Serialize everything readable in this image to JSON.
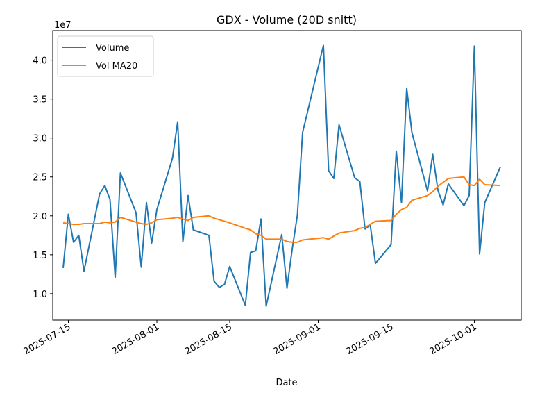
{
  "chart_data": {
    "type": "line",
    "title": "GDX - Volume (20D snitt)",
    "xlabel": "Date",
    "ylabel": "",
    "y_offset_label": "1e7",
    "y_scale_factor": 10000000,
    "xlim": [
      "2025-07-12",
      "2025-10-10"
    ],
    "ylim": [
      0.66,
      4.38
    ],
    "y_ticks": [
      1.0,
      1.5,
      2.0,
      2.5,
      3.0,
      3.5,
      4.0
    ],
    "y_tick_labels": [
      "1.0",
      "1.5",
      "2.0",
      "2.5",
      "3.0",
      "3.5",
      "4.0"
    ],
    "x_ticks": [
      "2025-07-15",
      "2025-08-01",
      "2025-08-15",
      "2025-09-01",
      "2025-09-15",
      "2025-10-01"
    ],
    "x_tick_labels": [
      "2025-07-15",
      "2025-08-01",
      "2025-08-15",
      "2025-09-01",
      "2025-09-15",
      "2025-10-01"
    ],
    "legend_position": "top-left",
    "grid": false,
    "series": [
      {
        "name": "Volume",
        "color": "#1f77b4",
        "x": [
          "2025-07-14",
          "2025-07-15",
          "2025-07-16",
          "2025-07-17",
          "2025-07-18",
          "2025-07-21",
          "2025-07-22",
          "2025-07-23",
          "2025-07-24",
          "2025-07-25",
          "2025-07-28",
          "2025-07-29",
          "2025-07-30",
          "2025-07-31",
          "2025-08-01",
          "2025-08-04",
          "2025-08-05",
          "2025-08-06",
          "2025-08-07",
          "2025-08-08",
          "2025-08-11",
          "2025-08-12",
          "2025-08-13",
          "2025-08-14",
          "2025-08-15",
          "2025-08-18",
          "2025-08-19",
          "2025-08-20",
          "2025-08-21",
          "2025-08-22",
          "2025-08-25",
          "2025-08-26",
          "2025-08-27",
          "2025-08-28",
          "2025-08-29",
          "2025-09-02",
          "2025-09-03",
          "2025-09-04",
          "2025-09-05",
          "2025-09-08",
          "2025-09-09",
          "2025-09-10",
          "2025-09-11",
          "2025-09-12",
          "2025-09-15",
          "2025-09-16",
          "2025-09-17",
          "2025-09-18",
          "2025-09-19",
          "2025-09-22",
          "2025-09-23",
          "2025-09-24",
          "2025-09-25",
          "2025-09-26",
          "2025-09-29",
          "2025-09-30",
          "2025-10-01",
          "2025-10-02",
          "2025-10-03",
          "2025-10-06"
        ],
        "values": [
          1.33,
          2.02,
          1.66,
          1.75,
          1.29,
          2.28,
          2.39,
          2.21,
          1.21,
          2.55,
          2.04,
          1.34,
          2.17,
          1.65,
          2.08,
          2.74,
          3.21,
          1.67,
          2.26,
          1.82,
          1.75,
          1.16,
          1.08,
          1.12,
          1.35,
          0.85,
          1.53,
          1.55,
          1.96,
          0.84,
          1.76,
          1.07,
          1.57,
          2.01,
          3.07,
          4.19,
          2.58,
          2.48,
          3.17,
          2.49,
          2.44,
          1.83,
          1.88,
          1.39,
          1.63,
          2.83,
          2.17,
          3.64,
          3.07,
          2.32,
          2.79,
          2.33,
          2.14,
          2.41,
          2.13,
          2.26,
          4.18,
          1.51,
          2.17,
          2.63
        ]
      },
      {
        "name": "Vol MA20",
        "color": "#ff7f0e",
        "x": [
          "2025-07-14",
          "2025-07-15",
          "2025-07-16",
          "2025-07-17",
          "2025-07-18",
          "2025-07-21",
          "2025-07-22",
          "2025-07-23",
          "2025-07-24",
          "2025-07-25",
          "2025-07-28",
          "2025-07-29",
          "2025-07-30",
          "2025-07-31",
          "2025-08-01",
          "2025-08-04",
          "2025-08-05",
          "2025-08-06",
          "2025-08-07",
          "2025-08-08",
          "2025-08-11",
          "2025-08-12",
          "2025-08-13",
          "2025-08-14",
          "2025-08-15",
          "2025-08-18",
          "2025-08-19",
          "2025-08-20",
          "2025-08-21",
          "2025-08-22",
          "2025-08-25",
          "2025-08-26",
          "2025-08-27",
          "2025-08-28",
          "2025-08-29",
          "2025-09-02",
          "2025-09-03",
          "2025-09-04",
          "2025-09-05",
          "2025-09-08",
          "2025-09-09",
          "2025-09-10",
          "2025-09-11",
          "2025-09-12",
          "2025-09-15",
          "2025-09-16",
          "2025-09-17",
          "2025-09-18",
          "2025-09-19",
          "2025-09-22",
          "2025-09-23",
          "2025-09-24",
          "2025-09-25",
          "2025-09-26",
          "2025-09-29",
          "2025-09-30",
          "2025-10-01",
          "2025-10-02",
          "2025-10-03",
          "2025-10-06"
        ],
        "values": [
          1.91,
          1.9,
          1.89,
          1.89,
          1.9,
          1.9,
          1.92,
          1.91,
          1.92,
          1.98,
          1.92,
          1.9,
          1.89,
          1.91,
          1.95,
          1.97,
          1.98,
          1.96,
          1.94,
          1.98,
          2.0,
          1.97,
          1.95,
          1.93,
          1.91,
          1.84,
          1.82,
          1.77,
          1.75,
          1.7,
          1.7,
          1.67,
          1.66,
          1.66,
          1.69,
          1.72,
          1.7,
          1.74,
          1.78,
          1.81,
          1.84,
          1.85,
          1.89,
          1.93,
          1.94,
          2.02,
          2.08,
          2.11,
          2.2,
          2.26,
          2.31,
          2.38,
          2.43,
          2.48,
          2.5,
          2.4,
          2.39,
          2.47,
          2.4,
          2.39
        ]
      }
    ]
  }
}
